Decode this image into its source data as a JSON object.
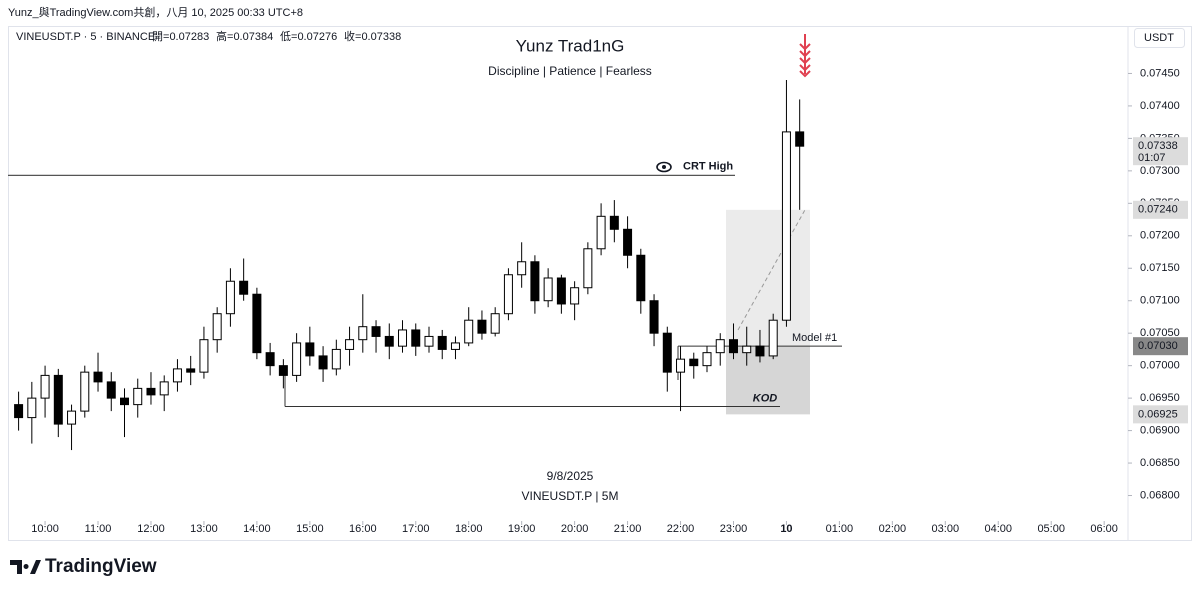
{
  "chart_data": {
    "type": "candlestick",
    "attribution": "Yunz_與TradingView.com共創，八月 10, 2025 00:33 UTC+8",
    "symbol_line": "VINEUSDT.P · 5 · BINANCE",
    "ohlc_legend": [
      {
        "label": "開=",
        "value": 0.07283
      },
      {
        "label": "高=",
        "value": 0.07384
      },
      {
        "label": "低=",
        "value": 0.07276
      },
      {
        "label": "收=",
        "value": 0.07338
      }
    ],
    "title": "Yunz Trad1nG",
    "subtitle": "Discipline | Patience | Fearless",
    "currency": "USDT",
    "watermark_date": "9/8/2025",
    "watermark_symbol": "VINEUSDT.P | 5M",
    "brand": "TradingView",
    "up_color": "#ffffff",
    "down_color": "#000000",
    "outline_color": "#000000",
    "x": [
      "09:30",
      "09:45",
      "10:00",
      "10:15",
      "10:30",
      "10:45",
      "11:00",
      "11:15",
      "11:30",
      "11:45",
      "12:00",
      "12:15",
      "12:30",
      "12:45",
      "13:00",
      "13:15",
      "13:30",
      "13:45",
      "14:00",
      "14:15",
      "14:30",
      "14:45",
      "15:00",
      "15:15",
      "15:30",
      "15:45",
      "16:00",
      "16:15",
      "16:30",
      "16:45",
      "17:00",
      "17:15",
      "17:30",
      "17:45",
      "18:00",
      "18:15",
      "18:30",
      "18:45",
      "19:00",
      "19:15",
      "19:30",
      "19:45",
      "20:00",
      "20:15",
      "20:30",
      "20:45",
      "21:00",
      "21:15",
      "21:30",
      "21:45",
      "22:00",
      "22:15",
      "22:30",
      "22:45",
      "23:00",
      "23:15",
      "23:30",
      "23:45",
      "00:00",
      "00:15"
    ],
    "open": [
      0.0694,
      0.0692,
      0.0695,
      0.06985,
      0.0691,
      0.0693,
      0.0699,
      0.06975,
      0.0695,
      0.0694,
      0.06965,
      0.06955,
      0.06975,
      0.06995,
      0.0699,
      0.0704,
      0.0708,
      0.0713,
      0.0711,
      0.0702,
      0.07,
      0.06985,
      0.07035,
      0.07015,
      0.06995,
      0.07025,
      0.0704,
      0.0706,
      0.07045,
      0.0703,
      0.07055,
      0.0703,
      0.07045,
      0.07025,
      0.07035,
      0.0707,
      0.0705,
      0.0708,
      0.0714,
      0.0716,
      0.071,
      0.07135,
      0.07095,
      0.0712,
      0.0718,
      0.0723,
      0.0721,
      0.0717,
      0.071,
      0.0705,
      0.0699,
      0.0701,
      0.07,
      0.0702,
      0.0704,
      0.0702,
      0.0703,
      0.07015,
      0.0707,
      0.0736
    ],
    "high": [
      0.0696,
      0.06975,
      0.07,
      0.06995,
      0.0694,
      0.07,
      0.0702,
      0.0699,
      0.06965,
      0.0698,
      0.0699,
      0.06985,
      0.0701,
      0.07015,
      0.0706,
      0.0709,
      0.0715,
      0.07165,
      0.0712,
      0.07035,
      0.0701,
      0.0705,
      0.0706,
      0.0703,
      0.0704,
      0.0706,
      0.0711,
      0.0707,
      0.07065,
      0.0707,
      0.07065,
      0.0706,
      0.07055,
      0.07045,
      0.0709,
      0.07085,
      0.0709,
      0.0715,
      0.0719,
      0.0717,
      0.0715,
      0.0714,
      0.0713,
      0.0719,
      0.0725,
      0.07255,
      0.0723,
      0.0718,
      0.0711,
      0.0706,
      0.0703,
      0.0702,
      0.0703,
      0.0705,
      0.07065,
      0.0706,
      0.07055,
      0.0708,
      0.0744,
      0.0741
    ],
    "low": [
      0.069,
      0.0688,
      0.0692,
      0.0689,
      0.0687,
      0.0692,
      0.0696,
      0.0693,
      0.0689,
      0.0692,
      0.0694,
      0.0693,
      0.0696,
      0.0697,
      0.0698,
      0.0702,
      0.0706,
      0.071,
      0.0701,
      0.06985,
      0.06965,
      0.06975,
      0.07,
      0.06975,
      0.06985,
      0.07,
      0.0702,
      0.0702,
      0.0701,
      0.0702,
      0.07015,
      0.0702,
      0.0701,
      0.0701,
      0.0703,
      0.0704,
      0.07045,
      0.0707,
      0.0712,
      0.0708,
      0.0709,
      0.0708,
      0.0707,
      0.0711,
      0.0717,
      0.0719,
      0.0715,
      0.0708,
      0.0703,
      0.0696,
      0.0693,
      0.0698,
      0.0699,
      0.07,
      0.0701,
      0.07,
      0.07005,
      0.0701,
      0.0706,
      0.0724
    ],
    "close": [
      0.0692,
      0.0695,
      0.06985,
      0.0691,
      0.0693,
      0.0699,
      0.06975,
      0.0695,
      0.0694,
      0.06965,
      0.06955,
      0.06975,
      0.06995,
      0.0699,
      0.0704,
      0.0708,
      0.0713,
      0.0711,
      0.0702,
      0.07,
      0.06985,
      0.07035,
      0.07015,
      0.06995,
      0.07025,
      0.0704,
      0.0706,
      0.07045,
      0.0703,
      0.07055,
      0.0703,
      0.07045,
      0.07025,
      0.07035,
      0.0707,
      0.0705,
      0.0708,
      0.0714,
      0.0716,
      0.071,
      0.07135,
      0.07095,
      0.0712,
      0.0718,
      0.0723,
      0.0721,
      0.0717,
      0.071,
      0.0705,
      0.0699,
      0.0701,
      0.07,
      0.0702,
      0.0704,
      0.0702,
      0.0703,
      0.07015,
      0.0707,
      0.0736,
      0.07338
    ],
    "xlim": [
      "09:18",
      "06:27"
    ],
    "xticks": [
      "10:00",
      "11:00",
      "12:00",
      "13:00",
      "14:00",
      "15:00",
      "16:00",
      "17:00",
      "18:00",
      "19:00",
      "20:00",
      "21:00",
      "22:00",
      "23:00",
      {
        "value": "00:00",
        "label": "10"
      },
      "01:00",
      "02:00",
      "03:00",
      "04:00",
      "05:00",
      "06:00"
    ],
    "ylim": [
      0.0677,
      0.0752
    ],
    "yticks": [
      {
        "value": 0.068,
        "label": "0.06800"
      },
      {
        "value": 0.0685,
        "label": "0.06850"
      },
      {
        "value": 0.069,
        "label": "0.06900"
      },
      {
        "value": 0.0695,
        "label": "0.06950"
      },
      {
        "value": 0.07,
        "label": "0.07000"
      },
      {
        "value": 0.0705,
        "label": "0.07050"
      },
      {
        "value": 0.071,
        "label": "0.07100"
      },
      {
        "value": 0.0715,
        "label": "0.07150"
      },
      {
        "value": 0.072,
        "label": "0.07200"
      },
      {
        "value": 0.0725,
        "label": "0.07250"
      },
      {
        "value": 0.073,
        "label": "0.07300"
      },
      {
        "value": 0.0735,
        "label": "0.07350"
      },
      {
        "value": 0.074,
        "label": "0.07400"
      },
      {
        "value": 0.0745,
        "label": "0.07450"
      }
    ],
    "price_labels": [
      {
        "value": 0.07338,
        "label": "0.07338",
        "countdown": "01:07"
      },
      {
        "value": 0.0724,
        "label": "0.07240"
      },
      {
        "value": 0.0703,
        "label": "0.07030"
      },
      {
        "value": 0.06925,
        "label": "0.06925"
      }
    ],
    "crt_high": {
      "label": "CRT High",
      "value": 0.07293
    },
    "model": {
      "label": "Model #1",
      "value": 0.0703
    },
    "kod": {
      "label": "KOD",
      "value": 0.06937
    },
    "zone": {
      "low": 0.06925,
      "mid": 0.0703,
      "high": 0.0724
    }
  }
}
